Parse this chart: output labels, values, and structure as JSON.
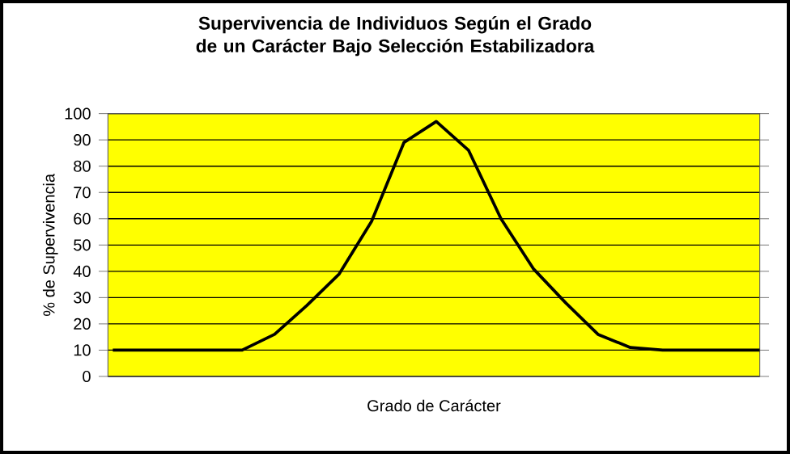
{
  "chart_data": {
    "type": "line",
    "title": "Supervivencia de Individuos Según el Grado de un Carácter Bajo Selección Estabilizadora",
    "xlabel": "Grado de Carácter",
    "ylabel": "% de Supervivencia",
    "categories": [
      null,
      null,
      null,
      null,
      null,
      null,
      null,
      null,
      null,
      null,
      null,
      null,
      null,
      null,
      null,
      null,
      null,
      null,
      null,
      null,
      null
    ],
    "series": [
      {
        "color": "#000000",
        "values": [
          10,
          10,
          10,
          10,
          10,
          16,
          27,
          39,
          59,
          89,
          97,
          86,
          60,
          41,
          28,
          16,
          11,
          10,
          10,
          10,
          10
        ]
      }
    ],
    "ylim": [
      0,
      100
    ],
    "yticks": [
      0,
      10,
      20,
      30,
      40,
      50,
      60,
      70,
      80,
      90,
      100
    ],
    "grid": "y",
    "marker": "none",
    "line_style": "solid"
  }
}
